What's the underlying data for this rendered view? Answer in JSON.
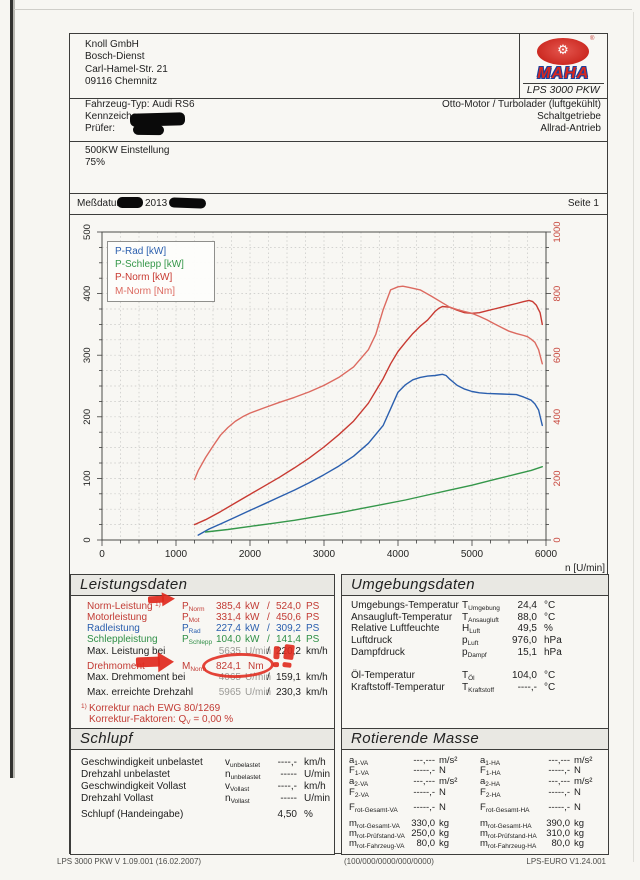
{
  "header": {
    "company_lines": [
      "Knoll GmbH",
      "Bosch-Dienst",
      "Carl-Hamel-Str. 21",
      "09116 Chemnitz"
    ],
    "logo": {
      "brand": "MAHA",
      "model": "LPS 3000 PKW",
      "reg": "®",
      "gear_icon": "⚙"
    },
    "vehicle": {
      "typ_label": "Fahrzeug-Typ:",
      "typ_value": "Audi RS6",
      "kennzeichen_label": "Kennzeichen:",
      "pruefer_label": "Prüfer:"
    },
    "engine_lines": [
      "Otto-Motor / Turbolader (luftgekühlt)",
      "Schaltgetriebe",
      "Allrad-Antrieb"
    ],
    "settings_lines": [
      "500KW Einstellung",
      "75%"
    ],
    "messdatum_label": "Meßdatum:",
    "messdatum_year": "2013",
    "page_label": "Seite 1"
  },
  "chart_data": {
    "type": "line",
    "xlabel": "n [U/min]",
    "xlim": [
      0,
      6000
    ],
    "x_major": 1000,
    "x_minor": 250,
    "ylim_left": [
      0,
      500
    ],
    "y_major_left": 100,
    "y_minor_left": 25,
    "ylim_right": [
      0,
      1000
    ],
    "y_major_right": 200,
    "x_ticks": [
      "0",
      "1000",
      "2000",
      "3000",
      "4000",
      "5000",
      "6000"
    ],
    "y_ticks_left": [
      "0",
      "100",
      "200",
      "300",
      "400",
      "500"
    ],
    "y_ticks_right": [
      "0",
      "200",
      "400",
      "600",
      "800",
      "1000"
    ],
    "grid": "dashed",
    "legend_position": "top-left",
    "series": [
      {
        "name": "P-Rad [kW]",
        "axis": "left",
        "color": "#2b5fae",
        "points": [
          [
            1300,
            8
          ],
          [
            1450,
            18
          ],
          [
            1600,
            26
          ],
          [
            1800,
            37
          ],
          [
            2000,
            48
          ],
          [
            2200,
            59
          ],
          [
            2400,
            70
          ],
          [
            2600,
            81
          ],
          [
            2800,
            93
          ],
          [
            3000,
            106
          ],
          [
            3200,
            120
          ],
          [
            3400,
            136
          ],
          [
            3600,
            157
          ],
          [
            3800,
            186
          ],
          [
            3900,
            213
          ],
          [
            4000,
            240
          ],
          [
            4100,
            252
          ],
          [
            4200,
            260
          ],
          [
            4300,
            264
          ],
          [
            4400,
            266
          ],
          [
            4500,
            267
          ],
          [
            4600,
            269
          ],
          [
            4650,
            267
          ],
          [
            4700,
            261
          ],
          [
            4800,
            251
          ],
          [
            4900,
            245
          ],
          [
            5000,
            241
          ],
          [
            5100,
            239
          ],
          [
            5200,
            238
          ],
          [
            5400,
            237
          ],
          [
            5600,
            236
          ],
          [
            5700,
            232
          ],
          [
            5800,
            227
          ],
          [
            5850,
            221
          ],
          [
            5900,
            211
          ],
          [
            5950,
            186
          ]
        ]
      },
      {
        "name": "P-Schlepp [kW]",
        "axis": "left",
        "color": "#35974a",
        "points": [
          [
            1400,
            13
          ],
          [
            1700,
            17
          ],
          [
            2000,
            22
          ],
          [
            2300,
            27
          ],
          [
            2600,
            32
          ],
          [
            2900,
            38
          ],
          [
            3200,
            44
          ],
          [
            3500,
            51
          ],
          [
            3800,
            58
          ],
          [
            4100,
            65
          ],
          [
            4400,
            73
          ],
          [
            4700,
            81
          ],
          [
            5000,
            89
          ],
          [
            5300,
            98
          ],
          [
            5600,
            107
          ],
          [
            5800,
            113
          ],
          [
            5950,
            119
          ]
        ]
      },
      {
        "name": "P-Norm [kW]",
        "axis": "left",
        "color": "#c83a32",
        "points": [
          [
            1250,
            25
          ],
          [
            1400,
            33
          ],
          [
            1600,
            46
          ],
          [
            1800,
            60
          ],
          [
            2000,
            74
          ],
          [
            2200,
            88
          ],
          [
            2400,
            102
          ],
          [
            2600,
            117
          ],
          [
            2800,
            133
          ],
          [
            3000,
            151
          ],
          [
            3200,
            171
          ],
          [
            3400,
            193
          ],
          [
            3600,
            222
          ],
          [
            3800,
            262
          ],
          [
            3900,
            286
          ],
          [
            4000,
            306
          ],
          [
            4100,
            321
          ],
          [
            4200,
            335
          ],
          [
            4300,
            347
          ],
          [
            4400,
            357
          ],
          [
            4450,
            364
          ],
          [
            4500,
            371
          ],
          [
            4550,
            376
          ],
          [
            4600,
            379
          ],
          [
            4700,
            378
          ],
          [
            4800,
            373
          ],
          [
            4900,
            369
          ],
          [
            5000,
            368
          ],
          [
            5100,
            369
          ],
          [
            5200,
            372
          ],
          [
            5300,
            375
          ],
          [
            5400,
            378
          ],
          [
            5500,
            381
          ],
          [
            5600,
            384
          ],
          [
            5700,
            387
          ],
          [
            5770,
            389
          ],
          [
            5820,
            387
          ],
          [
            5870,
            381
          ],
          [
            5920,
            369
          ],
          [
            5950,
            350
          ]
        ]
      },
      {
        "name": "M-Norm [Nm]",
        "axis": "right",
        "color": "#dc6a60",
        "points": [
          [
            1250,
            196
          ],
          [
            1300,
            225
          ],
          [
            1400,
            268
          ],
          [
            1500,
            305
          ],
          [
            1600,
            340
          ],
          [
            1700,
            365
          ],
          [
            1800,
            385
          ],
          [
            1900,
            400
          ],
          [
            2000,
            412
          ],
          [
            2200,
            430
          ],
          [
            2400,
            447
          ],
          [
            2600,
            463
          ],
          [
            2800,
            481
          ],
          [
            3000,
            502
          ],
          [
            3200,
            528
          ],
          [
            3400,
            562
          ],
          [
            3600,
            618
          ],
          [
            3700,
            668
          ],
          [
            3800,
            748
          ],
          [
            3900,
            812
          ],
          [
            4000,
            822
          ],
          [
            4065,
            824
          ],
          [
            4150,
            820
          ],
          [
            4300,
            812
          ],
          [
            4450,
            792
          ],
          [
            4600,
            770
          ],
          [
            4700,
            756
          ],
          [
            4800,
            748
          ],
          [
            4900,
            742
          ],
          [
            5000,
            736
          ],
          [
            5100,
            726
          ],
          [
            5200,
            715
          ],
          [
            5300,
            702
          ],
          [
            5400,
            690
          ],
          [
            5500,
            678
          ],
          [
            5600,
            670
          ],
          [
            5700,
            664
          ],
          [
            5750,
            660
          ],
          [
            5800,
            652
          ],
          [
            5850,
            642
          ],
          [
            5900,
            618
          ],
          [
            5950,
            572
          ]
        ]
      }
    ]
  },
  "leistungsdaten": {
    "title": "Leistungsdaten",
    "rows": [
      {
        "label": "Norm-Leistung",
        "fn": "1)",
        "sym": "P",
        "sub": "Norm",
        "v1": "385,4",
        "u1": "kW",
        "sep": "/",
        "v2": "524,0",
        "u2": "PS"
      },
      {
        "label": "Motorleistung",
        "sym": "P",
        "sub": "Mot",
        "v1": "331,4",
        "u1": "kW",
        "sep": "/",
        "v2": "450,6",
        "u2": "PS"
      },
      {
        "label": "Radleistung",
        "sym": "P",
        "sub": "Rad",
        "v1": "227,4",
        "u1": "kW",
        "sep": "/",
        "v2": "309,2",
        "u2": "PS"
      },
      {
        "label": "Schleppleistung",
        "sym": "P",
        "sub": "Schlepp",
        "v1": "104,0",
        "u1": "kW",
        "sep": "/",
        "v2": "141,4",
        "u2": "PS"
      },
      {
        "label": "Max. Leistung bei",
        "v1": "5635",
        "u1": "U/min",
        "sep": "/",
        "v2": "220,2",
        "u2": "km/h"
      },
      {
        "label": "Drehmoment",
        "sym": "M",
        "sub": "Norm",
        "v1": "824,1",
        "u1": "Nm"
      },
      {
        "label": "Max. Drehmoment bei",
        "v1": "4065",
        "u1": "U/min",
        "sep": "/",
        "v2": "159,1",
        "u2": "km/h"
      },
      {
        "label": "Max. erreichte Drehzahl",
        "v1": "5965",
        "u1": "U/min",
        "sep": "/",
        "v2": "230,3",
        "u2": "km/h"
      }
    ],
    "footnote_mark": "1)",
    "footnote_text": "Korrektur nach EWG 80/1269",
    "korrektur_pre": "Korrektur-Faktoren: Q",
    "korrektur_sub": "V",
    "korrektur_post": "=   0,00 %"
  },
  "umgebungsdaten": {
    "title": "Umgebungsdaten",
    "rows": [
      {
        "label": "Umgebungs-Temperatur",
        "sym": "T",
        "sub": "Umgebung",
        "value": "24,4",
        "unit": "°C"
      },
      {
        "label": "Ansaugluft-Temperatur",
        "sym": "T",
        "sub": "Ansaugluft",
        "value": "88,0",
        "unit": "°C"
      },
      {
        "label": "Relative Luftfeuchte",
        "sym": "H",
        "sub": "Luft",
        "value": "49,5",
        "unit": "%"
      },
      {
        "label": "Luftdruck",
        "sym": "p",
        "sub": "Luft",
        "value": "976,0",
        "unit": "hPa"
      },
      {
        "label": "Dampfdruck",
        "sym": "p",
        "sub": "Dampf",
        "value": "15,1",
        "unit": "hPa"
      },
      {
        "label": "Öl-Temperatur",
        "sym": "T",
        "sub": "Öl",
        "value": "104,0",
        "unit": "°C"
      },
      {
        "label": "Kraftstoff-Temperatur",
        "sym": "T",
        "sub": "Kraftstoff",
        "value": "----,-",
        "unit": "°C"
      }
    ]
  },
  "schlupf": {
    "title": "Schlupf",
    "rows": [
      {
        "label": "Geschwindigkeit unbelastet",
        "sym": "v",
        "sub": "unbelastet",
        "value": "----,-",
        "unit": "km/h"
      },
      {
        "label": "Drehzahl unbelastet",
        "sym": "n",
        "sub": "unbelastet",
        "value": "-----",
        "unit": "U/min"
      },
      {
        "label": "Geschwindigkeit Vollast",
        "sym": "v",
        "sub": "Vollast",
        "value": "----,-",
        "unit": "km/h"
      },
      {
        "label": "Drehzahl Vollast",
        "sym": "n",
        "sub": "Vollast",
        "value": "-----",
        "unit": "U/min"
      },
      {
        "label": "Schlupf (Handeingabe)",
        "value": "4,50",
        "unit": "%"
      }
    ]
  },
  "rotierende_masse": {
    "title": "Rotierende Masse",
    "va": [
      {
        "sym": "a",
        "sub": "1-VA",
        "value": "---,---",
        "unit": "m/s²"
      },
      {
        "sym": "F",
        "sub": "1-VA",
        "value": "-----,-",
        "unit": "N"
      },
      {
        "sym": "a",
        "sub": "2-VA",
        "value": "---,---",
        "unit": "m/s²"
      },
      {
        "sym": "F",
        "sub": "2-VA",
        "value": "-----,-",
        "unit": "N"
      },
      {
        "sym": "F",
        "sub": "rot-Gesamt-VA",
        "value": "-----,-",
        "unit": "N"
      },
      {
        "sym": "m",
        "sub": "rot-Gesamt-VA",
        "value": "330,0",
        "unit": "kg"
      },
      {
        "sym": "m",
        "sub": "rot-Prüfstand-VA",
        "value": "250,0",
        "unit": "kg"
      },
      {
        "sym": "m",
        "sub": "rot-Fahrzeug-VA",
        "value": "80,0",
        "unit": "kg"
      }
    ],
    "ha": [
      {
        "sym": "a",
        "sub": "1-HA",
        "value": "---,---",
        "unit": "m/s²"
      },
      {
        "sym": "F",
        "sub": "1-HA",
        "value": "-----,-",
        "unit": "N"
      },
      {
        "sym": "a",
        "sub": "2-HA",
        "value": "---,---",
        "unit": "m/s²"
      },
      {
        "sym": "F",
        "sub": "2-HA",
        "value": "-----,-",
        "unit": "N"
      },
      {
        "sym": "F",
        "sub": "rot-Gesamt-HA",
        "value": "-----,-",
        "unit": "N"
      },
      {
        "sym": "m",
        "sub": "rot-Gesamt-HA",
        "value": "390,0",
        "unit": "kg"
      },
      {
        "sym": "m",
        "sub": "rot-Prüfstand-HA",
        "value": "310,0",
        "unit": "kg"
      },
      {
        "sym": "m",
        "sub": "rot-Fahrzeug-HA",
        "value": "80,0",
        "unit": "kg"
      }
    ]
  },
  "footer": {
    "left": "LPS 3000 PKW V 1.09.001 (16.02.2007)",
    "center": "(100/000/0000/000/0000)",
    "right": "LPS-EURO V1.24.001"
  }
}
